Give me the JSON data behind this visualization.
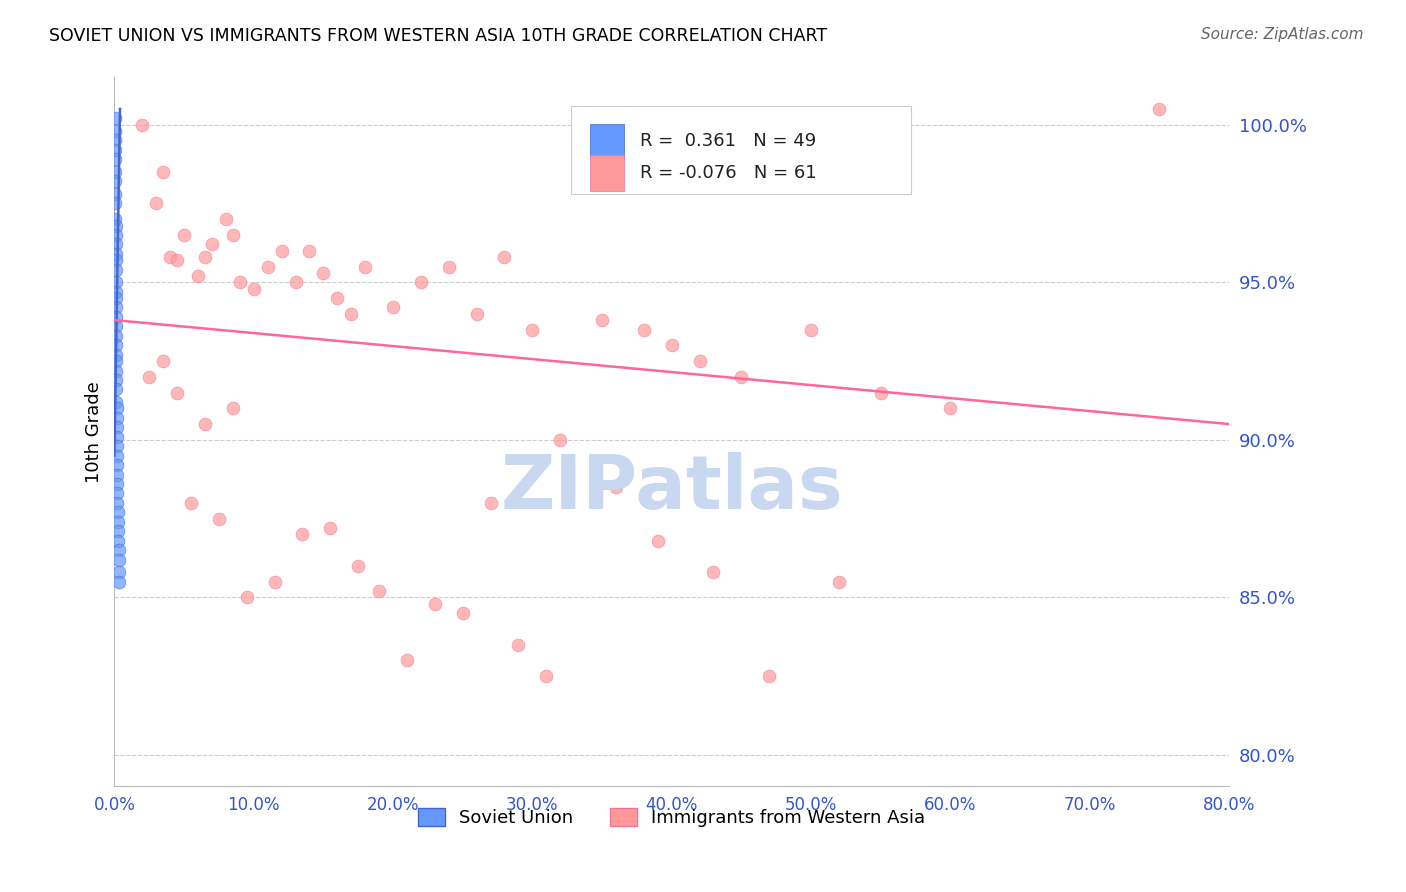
{
  "title": "SOVIET UNION VS IMMIGRANTS FROM WESTERN ASIA 10TH GRADE CORRELATION CHART",
  "source": "Source: ZipAtlas.com",
  "ylabel": "10th Grade",
  "ylabel_ticks": [
    80.0,
    85.0,
    90.0,
    95.0,
    100.0
  ],
  "xmin": 0.0,
  "xmax": 80.0,
  "ymin": 79.0,
  "ymax": 101.5,
  "color_soviet": "#6699FF",
  "color_western_asia": "#FF9999",
  "color_trend_soviet": "#4466CC",
  "color_trend_western_asia": "#FF6699",
  "color_axis_labels": "#3355CC",
  "color_grid": "#CCCCCC",
  "watermark_color": "#C8D8F0",
  "soviet_trend_x": [
    0.0,
    0.4
  ],
  "soviet_trend_y": [
    89.5,
    100.5
  ],
  "wa_trend_x": [
    0.0,
    80.0
  ],
  "wa_trend_y": [
    93.8,
    90.5
  ],
  "soviet_x": [
    0.05,
    0.05,
    0.05,
    0.05,
    0.05,
    0.05,
    0.05,
    0.05,
    0.05,
    0.05,
    0.08,
    0.08,
    0.08,
    0.08,
    0.08,
    0.08,
    0.08,
    0.08,
    0.1,
    0.1,
    0.1,
    0.1,
    0.1,
    0.1,
    0.1,
    0.12,
    0.12,
    0.12,
    0.12,
    0.12,
    0.15,
    0.15,
    0.15,
    0.15,
    0.18,
    0.18,
    0.18,
    0.2,
    0.2,
    0.22,
    0.22,
    0.25,
    0.25,
    0.28,
    0.28,
    0.3,
    0.3,
    0.35,
    0.35
  ],
  "soviet_y": [
    100.2,
    99.8,
    99.5,
    99.2,
    98.9,
    98.5,
    98.2,
    97.8,
    97.5,
    97.0,
    96.8,
    96.5,
    96.2,
    95.9,
    95.7,
    95.4,
    95.0,
    94.7,
    94.5,
    94.2,
    93.9,
    93.6,
    93.3,
    93.0,
    92.7,
    92.5,
    92.2,
    91.9,
    91.6,
    91.2,
    91.0,
    90.7,
    90.4,
    90.1,
    89.8,
    89.5,
    89.2,
    88.9,
    88.6,
    88.3,
    88.0,
    87.7,
    87.4,
    87.1,
    86.8,
    86.5,
    86.2,
    85.8,
    85.5
  ],
  "wa_x": [
    2.0,
    3.5,
    8.0,
    5.0,
    12.0,
    18.0,
    4.0,
    6.0,
    7.0,
    9.0,
    10.0,
    11.0,
    13.0,
    8.5,
    14.0,
    15.0,
    16.0,
    4.5,
    17.0,
    6.5,
    3.0,
    20.0,
    22.0,
    24.0,
    26.0,
    28.0,
    30.0,
    35.0,
    38.0,
    40.0,
    42.0,
    45.0,
    50.0,
    55.0,
    60.0,
    3.5,
    5.5,
    7.5,
    9.5,
    11.5,
    13.5,
    15.5,
    17.5,
    19.0,
    21.0,
    23.0,
    25.0,
    27.0,
    29.0,
    32.0,
    36.0,
    39.0,
    43.0,
    47.0,
    52.0,
    2.5,
    4.5,
    6.5,
    8.5,
    75.0,
    31.0
  ],
  "wa_y": [
    100.0,
    98.5,
    97.0,
    96.5,
    96.0,
    95.5,
    95.8,
    95.2,
    96.2,
    95.0,
    94.8,
    95.5,
    95.0,
    96.5,
    96.0,
    95.3,
    94.5,
    95.7,
    94.0,
    95.8,
    97.5,
    94.2,
    95.0,
    95.5,
    94.0,
    95.8,
    93.5,
    93.8,
    93.5,
    93.0,
    92.5,
    92.0,
    93.5,
    91.5,
    91.0,
    92.5,
    88.0,
    87.5,
    85.0,
    85.5,
    87.0,
    87.2,
    86.0,
    85.2,
    83.0,
    84.8,
    84.5,
    88.0,
    83.5,
    90.0,
    88.5,
    86.8,
    85.8,
    82.5,
    85.5,
    92.0,
    91.5,
    90.5,
    91.0,
    100.5,
    82.5
  ]
}
